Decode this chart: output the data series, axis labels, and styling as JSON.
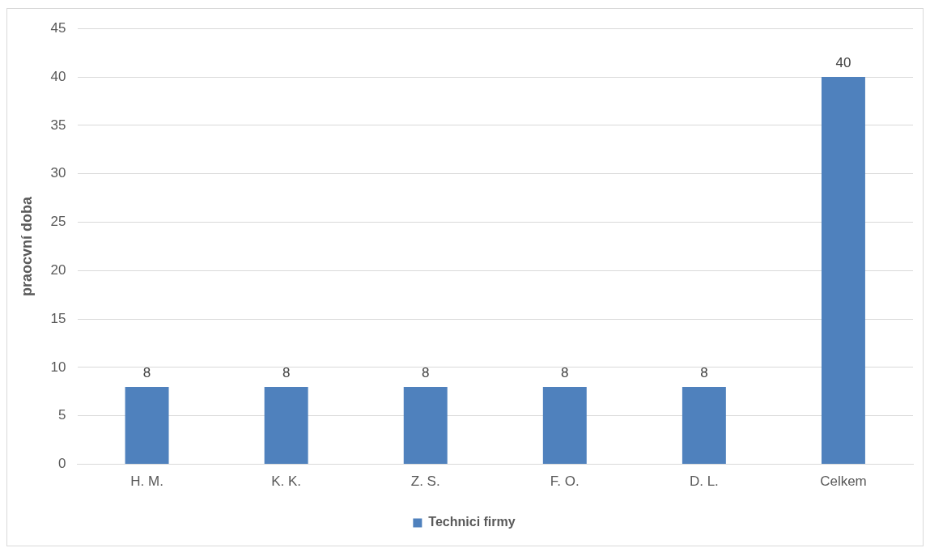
{
  "chart_data": {
    "type": "bar",
    "ylabel": "praocvní doba",
    "categories": [
      "H. M.",
      "K. K.",
      "Z. S.",
      "F. O.",
      "D. L.",
      "Celkem"
    ],
    "series": [
      {
        "name": "Technici firmy",
        "color": "#4f81bd",
        "values": [
          8,
          8,
          8,
          8,
          8,
          40
        ]
      }
    ],
    "ylim": [
      0,
      45
    ],
    "yticks": [
      0,
      5,
      10,
      15,
      20,
      25,
      30,
      35,
      40,
      45
    ],
    "grid": "y",
    "legend": "bottom",
    "data_labels": true
  }
}
